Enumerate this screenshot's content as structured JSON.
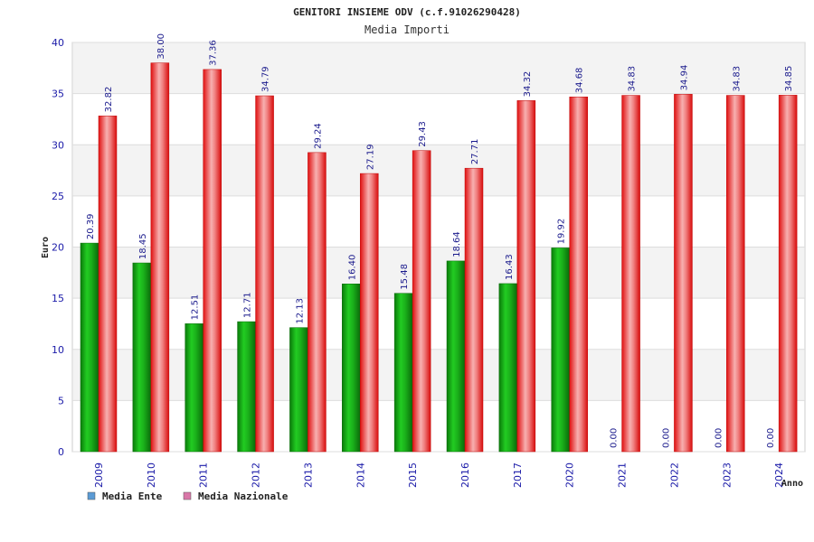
{
  "chart_data": {
    "type": "bar",
    "title": "GENITORI INSIEME ODV (c.f.91026290428)",
    "subtitle": "Media Importi",
    "xlabel": "Anno",
    "ylabel": "Euro",
    "ylim": [
      0,
      40
    ],
    "yticks": [
      0,
      5,
      10,
      15,
      20,
      25,
      30,
      35,
      40
    ],
    "grid": true,
    "legend_position": "bottom-left",
    "categories": [
      "2009",
      "2010",
      "2011",
      "2012",
      "2013",
      "2014",
      "2015",
      "2016",
      "2017",
      "2020",
      "2021",
      "2022",
      "2023",
      "2024"
    ],
    "series": [
      {
        "name": "Media Ente",
        "color": "#22aa22",
        "legend_color": "#5b9bd5",
        "values": [
          20.39,
          18.45,
          12.51,
          12.71,
          12.13,
          16.4,
          15.48,
          18.64,
          16.43,
          19.92,
          0.0,
          0.0,
          0.0,
          0.0
        ],
        "labels": [
          "20.39",
          "18.45",
          "12.51",
          "12.71",
          "12.13",
          "16.40",
          "15.48",
          "18.64",
          "16.43",
          "19.92",
          "0.00",
          "0.00",
          "0.00",
          "0.00"
        ]
      },
      {
        "name": "Media Nazionale",
        "color": "#ee2222",
        "legend_color": "#d977a8",
        "values": [
          32.82,
          38.0,
          37.36,
          34.79,
          29.24,
          27.19,
          29.43,
          27.71,
          34.32,
          34.68,
          34.83,
          34.94,
          34.83,
          34.85
        ],
        "labels": [
          "32.82",
          "38.00",
          "37.36",
          "34.79",
          "29.24",
          "27.19",
          "29.43",
          "27.71",
          "34.32",
          "34.68",
          "34.83",
          "34.94",
          "34.83",
          "34.85"
        ]
      }
    ]
  }
}
